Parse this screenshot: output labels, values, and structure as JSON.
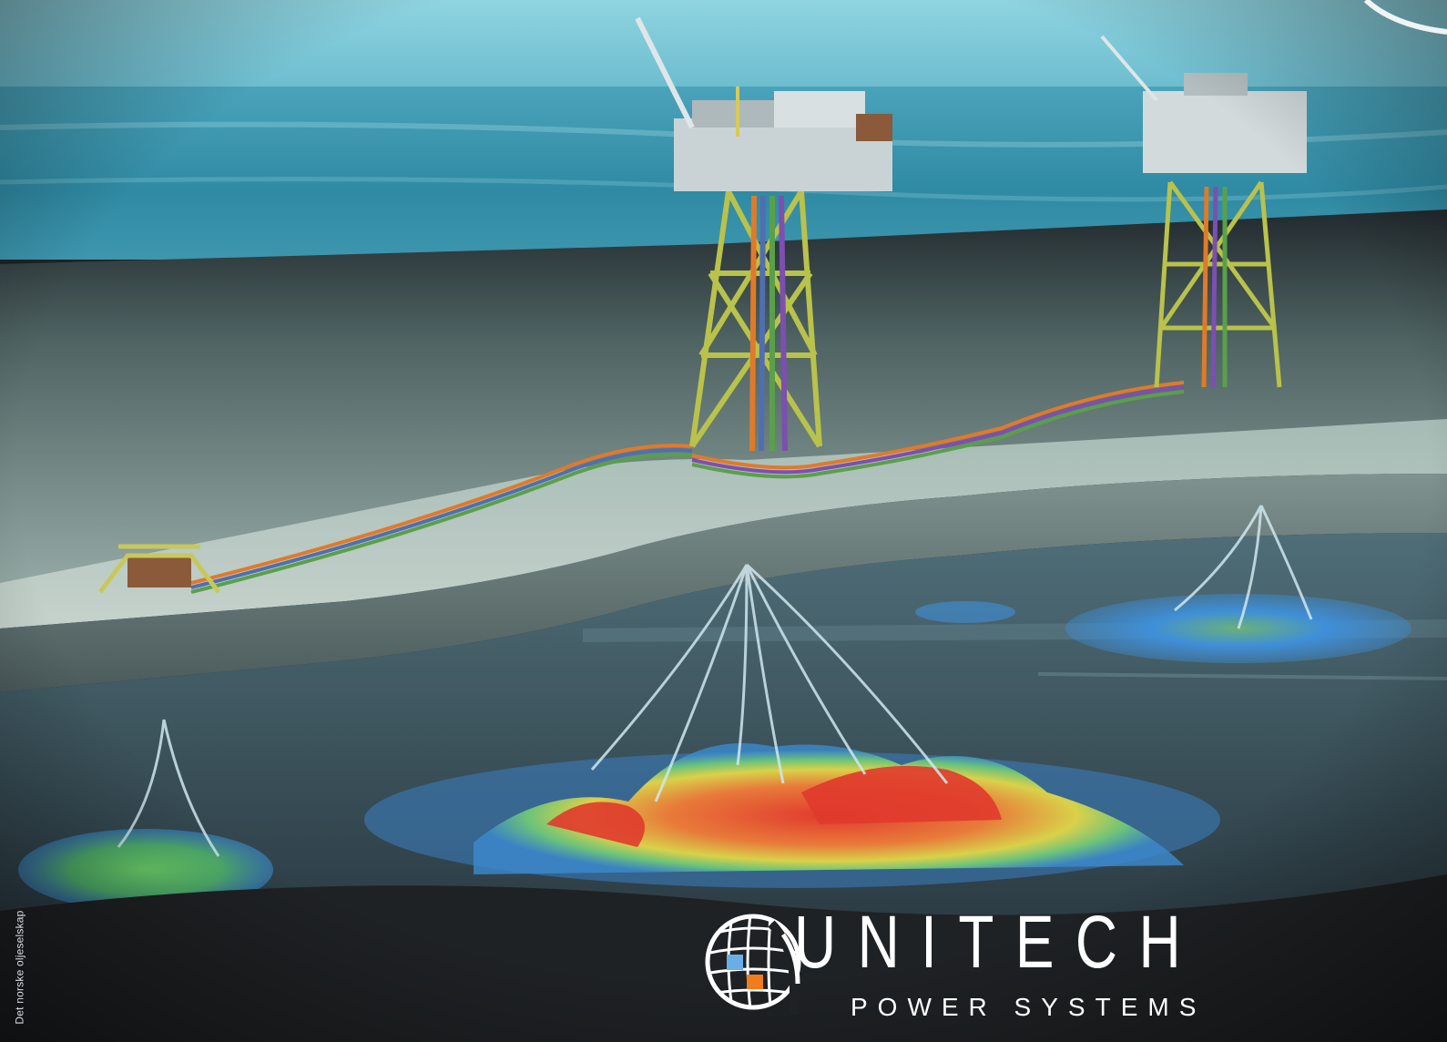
{
  "image": {
    "description_free": true
  },
  "logo": {
    "name": "UNITECH",
    "tagline": "POWER SYSTEMS",
    "icon": "globe-grid-icon",
    "accent_colors": [
      "#6aaee8",
      "#f07c1e"
    ]
  },
  "credit": {
    "text": "Det norske oljeselskap"
  },
  "colors": {
    "sky": "#7fc6d6",
    "sea_surface": "#3f8fa6",
    "seabed": "#8fa5a1",
    "dark_base": "#1f2224",
    "reservoir_hot": "#e53a2f",
    "reservoir_warm": "#f2c743",
    "reservoir_cool": "#3a8fd6"
  }
}
